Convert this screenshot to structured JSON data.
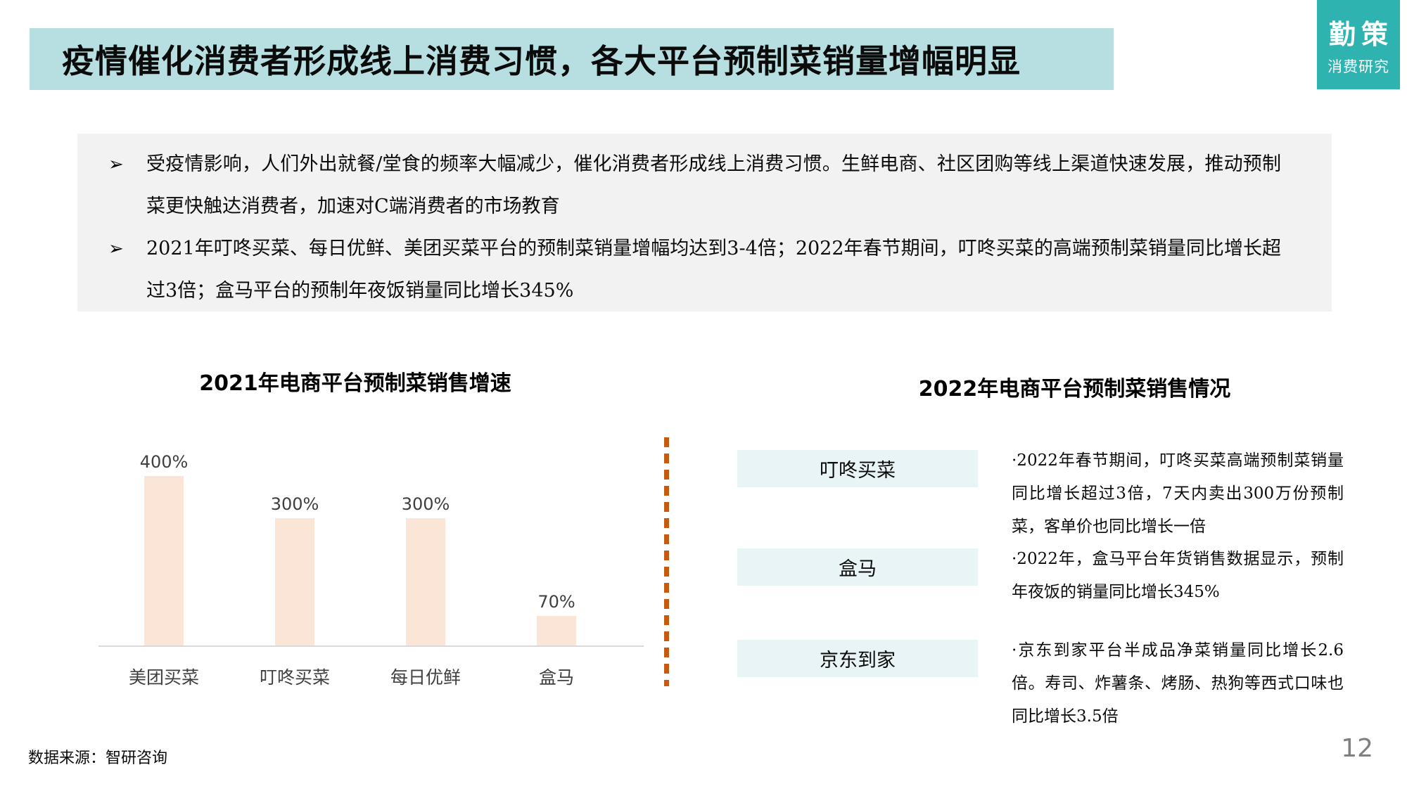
{
  "slide": {
    "title": "疫情催化消费者形成线上消费习惯，各大平台预制菜销量增幅明显",
    "page_number": "12",
    "source": "数据来源：智研咨询"
  },
  "logo": {
    "name": "勤策",
    "subtitle": "消费研究",
    "color": "#2EB3B0"
  },
  "summary": {
    "bullet_marker": "➢",
    "bullets": [
      "受疫情影响，人们外出就餐/堂食的频率大幅减少，催化消费者形成线上消费习惯。生鲜电商、社区团购等线上渠道快速发展，推动预制菜更快触达消费者，加速对C端消费者的市场教育",
      "2021年叮咚买菜、每日优鲜、美团买菜平台的预制菜销量增幅均达到3-4倍；2022年春节期间，叮咚买菜的高端预制菜销量同比增长超过3倍；盒马平台的预制年夜饭销量同比增长345%"
    ]
  },
  "chart_data": {
    "type": "bar",
    "title": "2021年电商平台预制菜销售增速",
    "categories": [
      "美团买菜",
      "叮咚买菜",
      "每日优鲜",
      "盒马"
    ],
    "values": [
      400,
      300,
      300,
      70
    ],
    "value_labels": [
      "400%",
      "300%",
      "300%",
      "70%"
    ],
    "unit": "%",
    "ylim": [
      0,
      465
    ],
    "bar_color": "#FBE5D6",
    "baseline_color": "#D9D9D9",
    "xlabel": "",
    "ylabel": "",
    "grid": false,
    "legend": "none"
  },
  "right_panel": {
    "title": "2022年电商平台预制菜销售情况",
    "divider_color": "#C55A11",
    "box_color": "#E8F4F6",
    "items": [
      {
        "platform": "叮咚买菜",
        "description": "·2022年春节期间，叮咚买菜高端预制菜销量同比增长超过3倍，7天内卖出300万份预制菜，客单价也同比增长一倍"
      },
      {
        "platform": "盒马",
        "description": "·2022年，盒马平台年货销售数据显示，预制年夜饭的销量同比增长345%"
      },
      {
        "platform": "京东到家",
        "description": "·京东到家平台半成品净菜销量同比增长2.6倍。寿司、炸薯条、烤肠、热狗等西式口味也同比增长3.5倍"
      }
    ]
  }
}
